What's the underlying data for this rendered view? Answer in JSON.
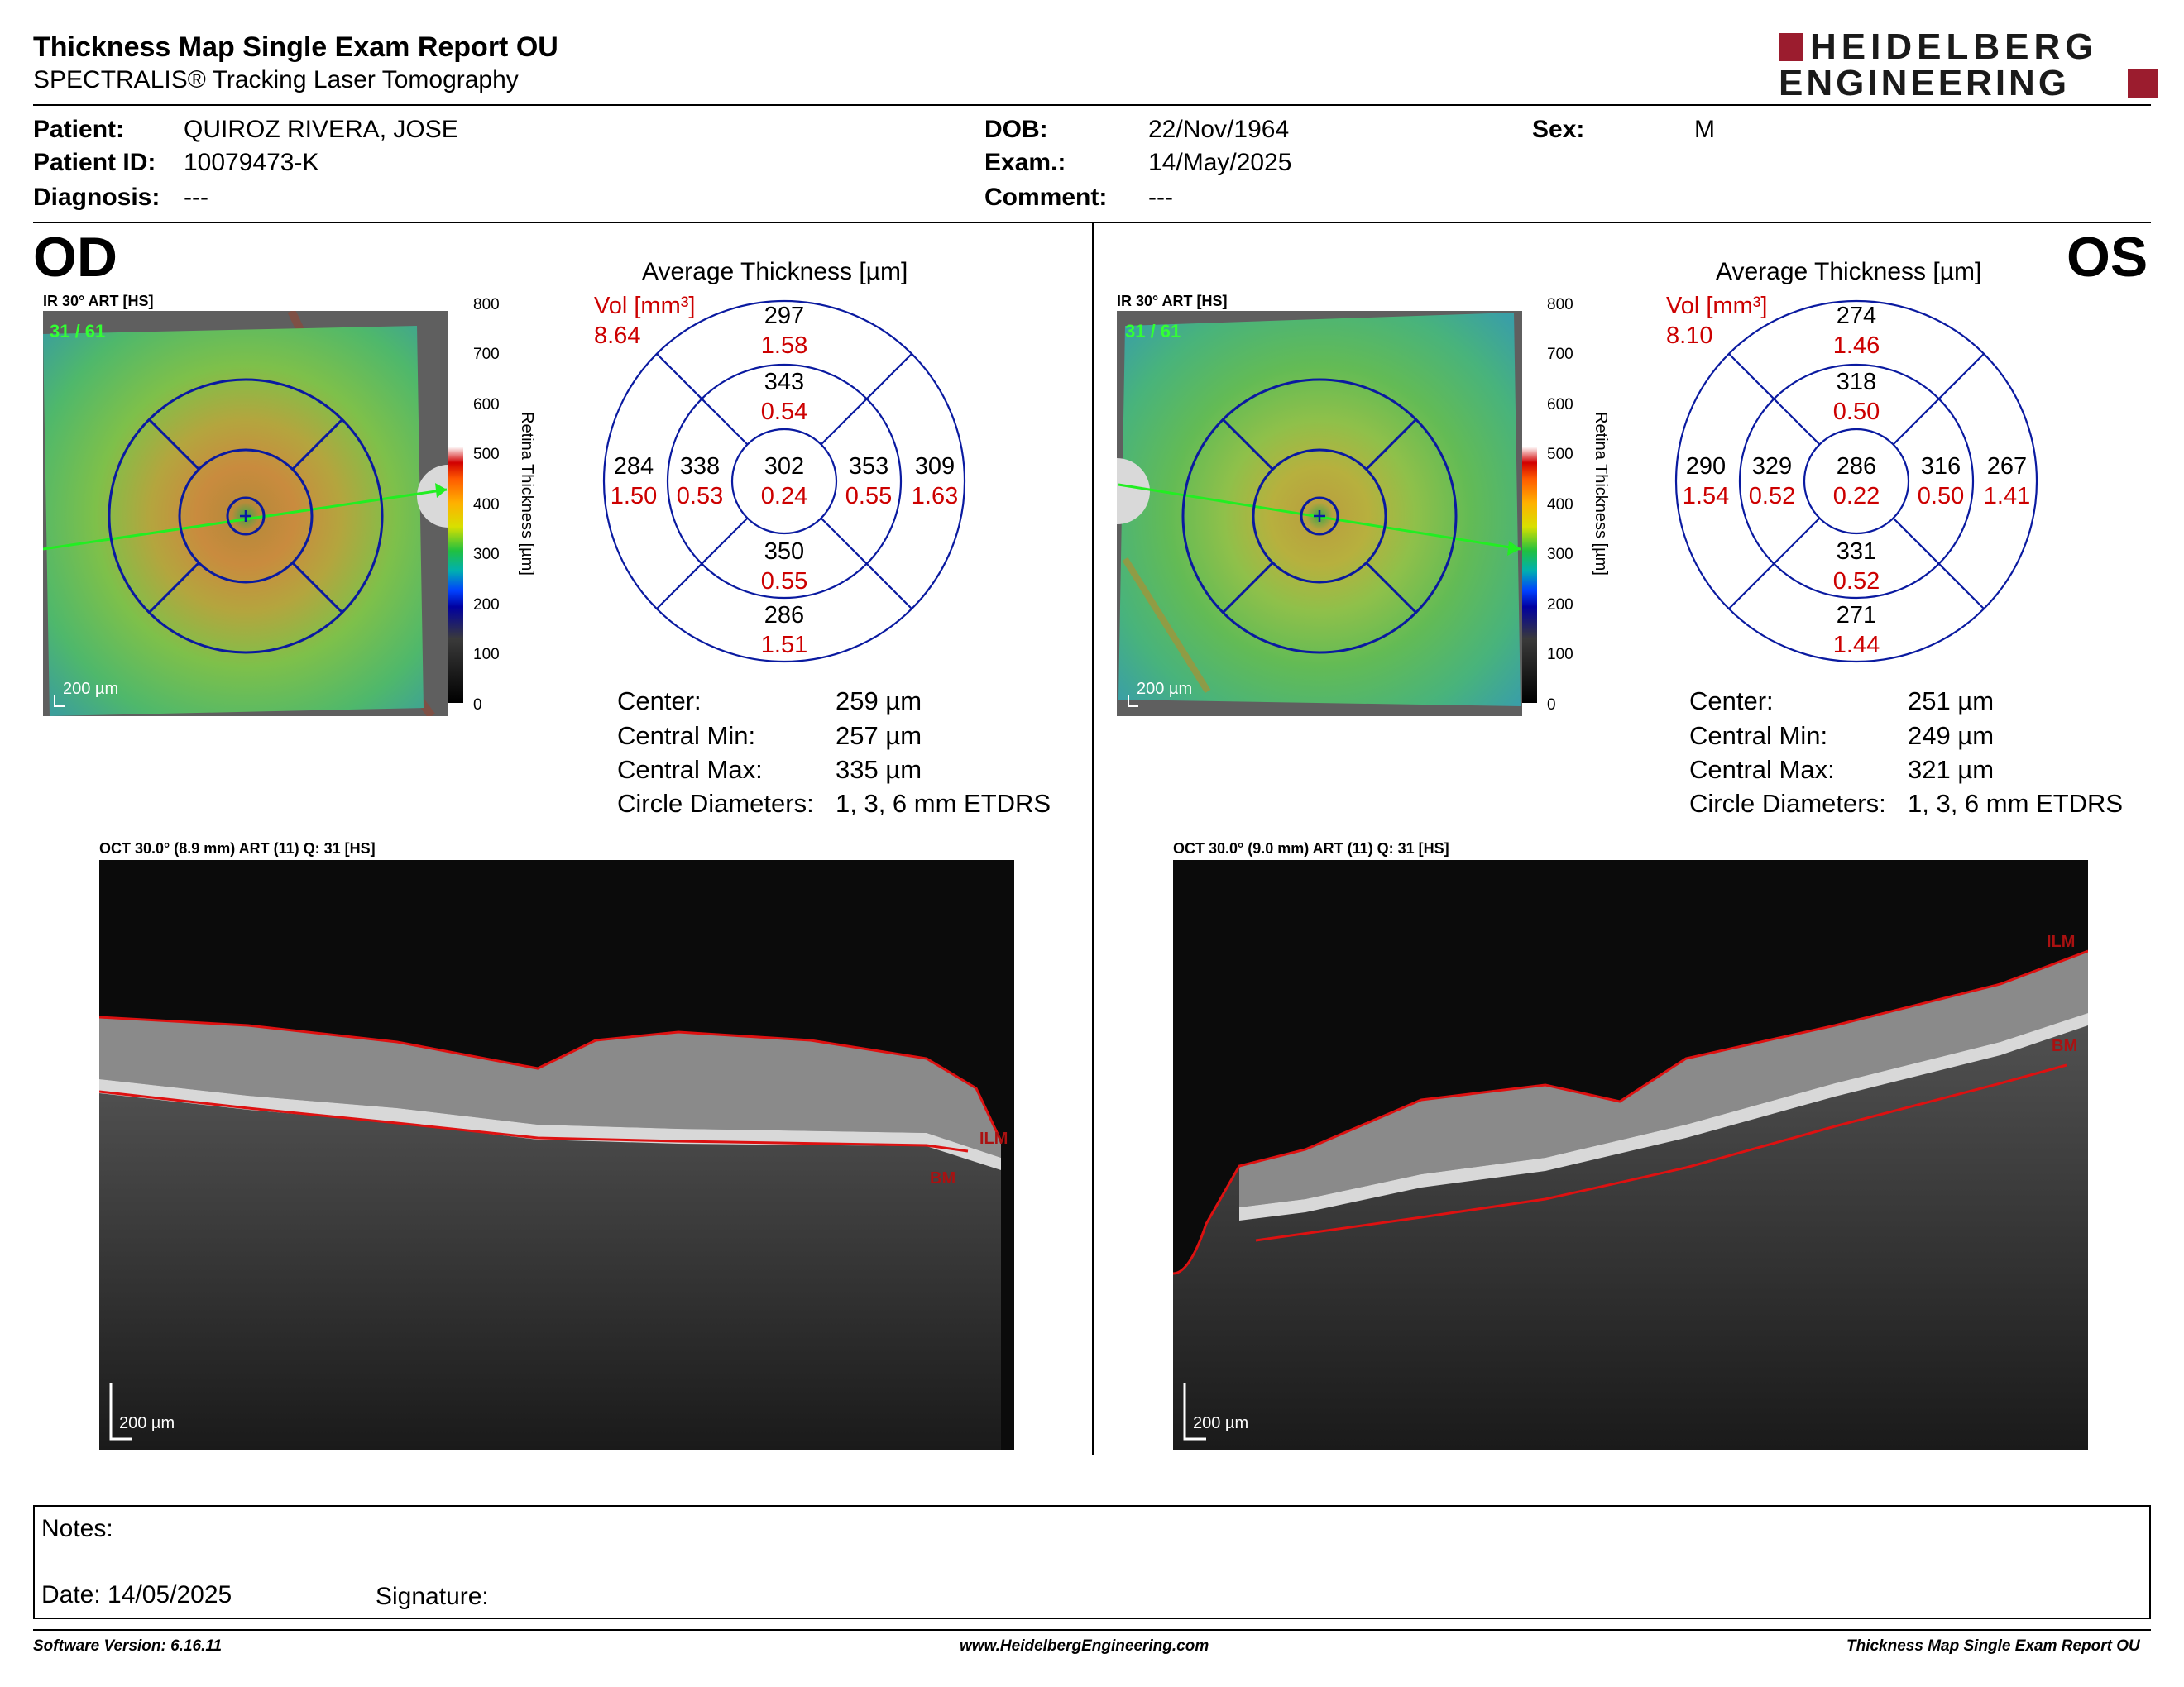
{
  "report": {
    "title": "Thickness Map Single Exam Report OU",
    "subtitle": "SPECTRALIS® Tracking Laser Tomography",
    "logo_line1": "HEIDELBERG",
    "logo_line2": "ENGINEERING"
  },
  "patient": {
    "patient_label": "Patient:",
    "patient_value": "QUIROZ RIVERA, JOSE",
    "id_label": "Patient ID:",
    "id_value": "10079473-K",
    "diagnosis_label": "Diagnosis:",
    "diagnosis_value": "---",
    "dob_label": "DOB:",
    "dob_value": "22/Nov/1964",
    "exam_label": "Exam.:",
    "exam_value": "14/May/2025",
    "comment_label": "Comment:",
    "comment_value": "---",
    "sex_label": "Sex:",
    "sex_value": "M"
  },
  "scale": {
    "ticks": [
      "800",
      "700",
      "600",
      "500",
      "400",
      "300",
      "200",
      "100",
      "0"
    ],
    "title": "Retina Thickness [µm]"
  },
  "od": {
    "eye": "OD",
    "ir_title": "IR 30° ART [HS]",
    "ir_counter": "31 / 61",
    "ir_scalebar": "200 µm",
    "etdrs_title": "Average Thickness [µm]",
    "vol_label": "Vol [mm³]",
    "vol_total": "8.64",
    "sectors": {
      "center": {
        "t": "302",
        "v": "0.24"
      },
      "inner_sup": {
        "t": "343",
        "v": "0.54"
      },
      "inner_inf": {
        "t": "350",
        "v": "0.55"
      },
      "inner_left": {
        "t": "338",
        "v": "0.53"
      },
      "inner_right": {
        "t": "353",
        "v": "0.55"
      },
      "outer_sup": {
        "t": "297",
        "v": "1.58"
      },
      "outer_inf": {
        "t": "286",
        "v": "1.51"
      },
      "outer_left": {
        "t": "284",
        "v": "1.50"
      },
      "outer_right": {
        "t": "309",
        "v": "1.63"
      }
    },
    "stats": [
      {
        "label": "Center:",
        "value": "259 µm"
      },
      {
        "label": "Central Min:",
        "value": "257 µm"
      },
      {
        "label": "Central Max:",
        "value": "335 µm"
      },
      {
        "label": "Circle Diameters:",
        "value": "1, 3, 6 mm ETDRS"
      }
    ],
    "oct_title": "OCT 30.0° (8.9 mm) ART (11) Q: 31 [HS]",
    "oct_scalebar": "200 µm",
    "oct_ilm": "ILM",
    "oct_bm": "BM"
  },
  "os": {
    "eye": "OS",
    "ir_title": "IR 30° ART [HS]",
    "ir_counter": "31 / 61",
    "ir_scalebar": "200 µm",
    "etdrs_title": "Average Thickness [µm]",
    "vol_label": "Vol [mm³]",
    "vol_total": "8.10",
    "sectors": {
      "center": {
        "t": "286",
        "v": "0.22"
      },
      "inner_sup": {
        "t": "318",
        "v": "0.50"
      },
      "inner_inf": {
        "t": "331",
        "v": "0.52"
      },
      "inner_left": {
        "t": "329",
        "v": "0.52"
      },
      "inner_right": {
        "t": "316",
        "v": "0.50"
      },
      "outer_sup": {
        "t": "274",
        "v": "1.46"
      },
      "outer_inf": {
        "t": "271",
        "v": "1.44"
      },
      "outer_left": {
        "t": "290",
        "v": "1.54"
      },
      "outer_right": {
        "t": "267",
        "v": "1.41"
      }
    },
    "stats": [
      {
        "label": "Center:",
        "value": "251 µm"
      },
      {
        "label": "Central Min:",
        "value": "249 µm"
      },
      {
        "label": "Central Max:",
        "value": "321 µm"
      },
      {
        "label": "Circle Diameters:",
        "value": "1, 3, 6 mm ETDRS"
      }
    ],
    "oct_title": "OCT 30.0° (9.0 mm) ART (11) Q: 31 [HS]",
    "oct_scalebar": "200 µm",
    "oct_ilm": "ILM",
    "oct_bm": "BM"
  },
  "notes": {
    "notes_label": "Notes:",
    "date_label": "Date: 14/05/2025",
    "signature_label": "Signature:"
  },
  "footer": {
    "software": "Software Version: 6.16.11",
    "website": "www.HeidelbergEngineering.com",
    "report": "Thickness Map Single Exam Report OU"
  },
  "colors": {
    "accent_red": "#cc0000",
    "grid_blue": "#0a1aa0",
    "logo_red": "#9b1c2e"
  }
}
